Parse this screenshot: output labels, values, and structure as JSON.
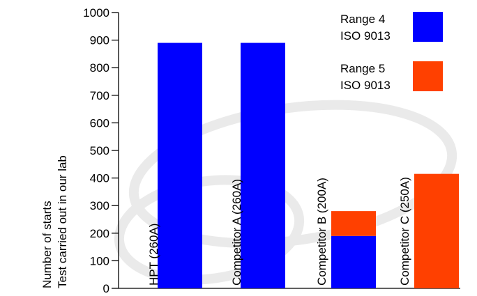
{
  "chart_data": {
    "type": "bar",
    "categories": [
      "HPT (260A)",
      "Competitor A (260A)",
      "Competitor B (200A)",
      "Competitor C (250A)"
    ],
    "series": [
      {
        "name": "Range 4 ISO 9013",
        "legend_lines": [
          "Range 4",
          "ISO 9013"
        ],
        "color": "#0000ff",
        "values": [
          890,
          890,
          190,
          0
        ]
      },
      {
        "name": "Range 5 ISO 9013",
        "legend_lines": [
          "Range 5",
          "ISO 9013"
        ],
        "color": "#ff4000",
        "values": [
          0,
          0,
          90,
          415
        ]
      }
    ],
    "stacked": true,
    "ylabel_lines": [
      "Number of starts",
      "Test carried out in our lab"
    ],
    "xlabel": "",
    "title": "",
    "ylim": [
      0,
      1000
    ],
    "yticks": [
      0,
      100,
      200,
      300,
      400,
      500,
      600,
      700,
      800,
      900,
      1000
    ],
    "grid": false,
    "legend_position": "top-right"
  }
}
